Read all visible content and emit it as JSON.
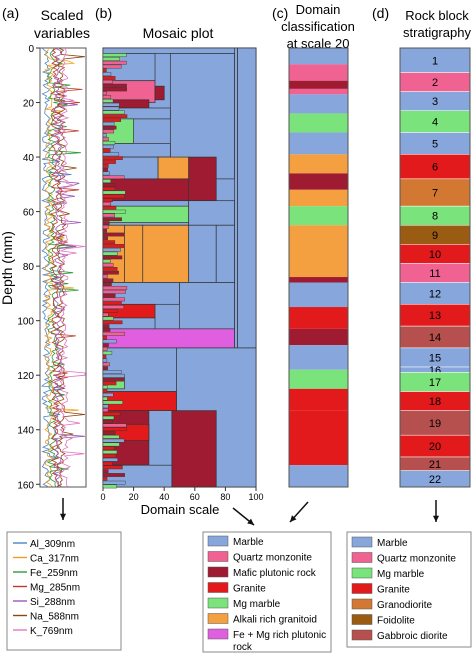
{
  "chart_data": {
    "type": "multi-panel",
    "depth_axis": {
      "label": "Depth (mm)",
      "range": [
        0,
        160
      ],
      "ticks": [
        0,
        20,
        40,
        60,
        80,
        100,
        120,
        140,
        160
      ]
    },
    "panels": {
      "a": {
        "letter": "(a)",
        "title_lines": [
          "Scaled",
          "variables"
        ],
        "type": "line",
        "legend": [
          "Al_309nm",
          "Ca_317nm",
          "Fe_259nm",
          "Mg_285nm",
          "Si_288nm",
          "Na_588nm",
          "K_769nm"
        ],
        "legend_colors": [
          "#4a86c8",
          "#f39c1e",
          "#2e9e3a",
          "#c0392b",
          "#9b59b6",
          "#8b4513",
          "#e377c2"
        ]
      },
      "b": {
        "letter": "(b)",
        "title": "Mosaic plot",
        "xlabel": "Domain scale",
        "xticks": [
          0,
          20,
          40,
          60,
          80,
          100
        ],
        "xrange": [
          0,
          100
        ],
        "type": "mosaic",
        "legend": [
          {
            "label": "Marble",
            "color": "#86a6dc"
          },
          {
            "label": "Quartz monzonite",
            "color": "#f06292"
          },
          {
            "label": "Mafic plutonic rock",
            "color": "#9e1b32"
          },
          {
            "label": "Granite",
            "color": "#e31a1c"
          },
          {
            "label": "Mg marble",
            "color": "#7be37b"
          },
          {
            "label": "Alkali rich granitoid",
            "color": "#f5a040"
          },
          {
            "label": "Fe + Mg rich plutonic rock",
            "color": "#e05ee0"
          }
        ],
        "legend_wrap_last": [
          "Fe + Mg rich plutonic",
          "rock"
        ],
        "blocks": [
          {
            "y0": 0,
            "y1": 2,
            "x0": 0,
            "x1": 100,
            "c": 0
          },
          {
            "y0": 2,
            "y1": 48,
            "x0": 44,
            "x1": 86,
            "c": 0
          },
          {
            "y0": 2,
            "y1": 12,
            "x0": 0,
            "x1": 34,
            "c": 0
          },
          {
            "y0": 12,
            "y1": 20,
            "x0": 0,
            "x1": 34,
            "c": 1
          },
          {
            "y0": 14,
            "y1": 19,
            "x0": 34,
            "x1": 40,
            "c": 2
          },
          {
            "y0": 19,
            "y1": 22,
            "x0": 0,
            "x1": 30,
            "c": 2
          },
          {
            "y0": 22,
            "y1": 26,
            "x0": 0,
            "x1": 44,
            "c": 0
          },
          {
            "y0": 26,
            "y1": 35,
            "x0": 0,
            "x1": 20,
            "c": 4
          },
          {
            "y0": 35,
            "y1": 40,
            "x0": 0,
            "x1": 44,
            "c": 0
          },
          {
            "y0": 40,
            "y1": 48,
            "x0": 0,
            "x1": 36,
            "c": 0
          },
          {
            "y0": 40,
            "y1": 48,
            "x0": 36,
            "x1": 56,
            "c": 5
          },
          {
            "y0": 40,
            "y1": 56,
            "x0": 56,
            "x1": 74,
            "c": 2
          },
          {
            "y0": 48,
            "y1": 56,
            "x0": 0,
            "x1": 56,
            "c": 2
          },
          {
            "y0": 56,
            "y1": 65,
            "x0": 0,
            "x1": 56,
            "c": 0
          },
          {
            "y0": 58,
            "y1": 64,
            "x0": 0,
            "x1": 56,
            "c": 4
          },
          {
            "y0": 56,
            "y1": 65,
            "x0": 56,
            "x1": 86,
            "c": 0
          },
          {
            "y0": 65,
            "y1": 86,
            "x0": 0,
            "x1": 14,
            "c": 5
          },
          {
            "y0": 65,
            "y1": 86,
            "x0": 14,
            "x1": 26,
            "c": 5
          },
          {
            "y0": 65,
            "y1": 86,
            "x0": 26,
            "x1": 56,
            "c": 5
          },
          {
            "y0": 65,
            "y1": 86,
            "x0": 56,
            "x1": 74,
            "c": 0
          },
          {
            "y0": 65,
            "y1": 86,
            "x0": 74,
            "x1": 86,
            "c": 0
          },
          {
            "y0": 86,
            "y1": 94,
            "x0": 0,
            "x1": 50,
            "c": 0
          },
          {
            "y0": 86,
            "y1": 103,
            "x0": 50,
            "x1": 86,
            "c": 0
          },
          {
            "y0": 94,
            "y1": 99,
            "x0": 0,
            "x1": 34,
            "c": 3
          },
          {
            "y0": 99,
            "y1": 103,
            "x0": 0,
            "x1": 34,
            "c": 0
          },
          {
            "y0": 103,
            "y1": 110,
            "x0": 0,
            "x1": 86,
            "c": 6
          },
          {
            "y0": 0,
            "y1": 110,
            "x0": 86,
            "x1": 88,
            "c": 0
          },
          {
            "y0": 0,
            "y1": 110,
            "x0": 88,
            "x1": 100,
            "c": 0
          },
          {
            "y0": 110,
            "y1": 126,
            "x0": 0,
            "x1": 48,
            "c": 0
          },
          {
            "y0": 110,
            "y1": 161,
            "x0": 48,
            "x1": 100,
            "c": 0
          },
          {
            "y0": 120,
            "y1": 125,
            "x0": 0,
            "x1": 14,
            "c": 4
          },
          {
            "y0": 126,
            "y1": 133,
            "x0": 0,
            "x1": 48,
            "c": 3
          },
          {
            "y0": 133,
            "y1": 153,
            "x0": 0,
            "x1": 30,
            "c": 2
          },
          {
            "y0": 133,
            "y1": 161,
            "x0": 45,
            "x1": 74,
            "c": 2
          },
          {
            "y0": 138,
            "y1": 144,
            "x0": 0,
            "x1": 30,
            "c": 3
          },
          {
            "y0": 153,
            "y1": 161,
            "x0": 0,
            "x1": 45,
            "c": 0
          }
        ]
      },
      "c": {
        "letter": "(c)",
        "title_lines": [
          "Domain",
          "classification",
          "at scale 20"
        ],
        "bands": [
          {
            "y0": 0,
            "y1": 6,
            "c": 0
          },
          {
            "y0": 6,
            "y1": 12,
            "c": 1
          },
          {
            "y0": 12,
            "y1": 15,
            "c": 2
          },
          {
            "y0": 15,
            "y1": 17,
            "c": 1
          },
          {
            "y0": 17,
            "y1": 24,
            "c": 0
          },
          {
            "y0": 24,
            "y1": 31,
            "c": 4
          },
          {
            "y0": 31,
            "y1": 39,
            "c": 0
          },
          {
            "y0": 39,
            "y1": 46,
            "c": 5
          },
          {
            "y0": 46,
            "y1": 52,
            "c": 2
          },
          {
            "y0": 52,
            "y1": 58,
            "c": 5
          },
          {
            "y0": 58,
            "y1": 65,
            "c": 4
          },
          {
            "y0": 65,
            "y1": 84,
            "c": 5
          },
          {
            "y0": 84,
            "y1": 86,
            "c": 2
          },
          {
            "y0": 86,
            "y1": 95,
            "c": 0
          },
          {
            "y0": 95,
            "y1": 103,
            "c": 3
          },
          {
            "y0": 103,
            "y1": 109,
            "c": 2
          },
          {
            "y0": 109,
            "y1": 118,
            "c": 0
          },
          {
            "y0": 118,
            "y1": 125,
            "c": 4
          },
          {
            "y0": 125,
            "y1": 133,
            "c": 3
          },
          {
            "y0": 133,
            "y1": 153,
            "c": 3
          },
          {
            "y0": 153,
            "y1": 161,
            "c": 0
          }
        ]
      },
      "d": {
        "letter": "(d)",
        "title_lines": [
          "Rock block",
          "stratigraphy"
        ],
        "legend": [
          {
            "label": "Marble",
            "color": "#86a6dc"
          },
          {
            "label": "Quartz monzonite",
            "color": "#f06292"
          },
          {
            "label": "Mg marble",
            "color": "#7be37b"
          },
          {
            "label": "Granite",
            "color": "#e31a1c"
          },
          {
            "label": "Granodiorite",
            "color": "#d27832"
          },
          {
            "label": "Foidolite",
            "color": "#9a5b12"
          },
          {
            "label": "Gabbroic diorite",
            "color": "#b5504f"
          }
        ],
        "blocks": [
          {
            "n": "1",
            "y0": 0,
            "y1": 9,
            "c": 0
          },
          {
            "n": "2",
            "y0": 9,
            "y1": 16,
            "c": 1
          },
          {
            "n": "3",
            "y0": 16,
            "y1": 23,
            "c": 0
          },
          {
            "n": "4",
            "y0": 23,
            "y1": 31,
            "c": 2
          },
          {
            "n": "5",
            "y0": 31,
            "y1": 39,
            "c": 0
          },
          {
            "n": "6",
            "y0": 39,
            "y1": 48,
            "c": 3
          },
          {
            "n": "7",
            "y0": 48,
            "y1": 58,
            "c": 4
          },
          {
            "n": "8",
            "y0": 58,
            "y1": 65,
            "c": 2
          },
          {
            "n": "9",
            "y0": 65,
            "y1": 72,
            "c": 5
          },
          {
            "n": "10",
            "y0": 72,
            "y1": 79,
            "c": 3
          },
          {
            "n": "11",
            "y0": 79,
            "y1": 86,
            "c": 1
          },
          {
            "n": "12",
            "y0": 86,
            "y1": 94,
            "c": 0
          },
          {
            "n": "13",
            "y0": 94,
            "y1": 102,
            "c": 3
          },
          {
            "n": "14",
            "y0": 102,
            "y1": 110,
            "c": 6
          },
          {
            "n": "15",
            "y0": 110,
            "y1": 117,
            "c": 0
          },
          {
            "n": "16",
            "y0": 117,
            "y1": 119,
            "c": 0
          },
          {
            "n": "17",
            "y0": 119,
            "y1": 126,
            "c": 2
          },
          {
            "n": "18",
            "y0": 126,
            "y1": 133,
            "c": 3
          },
          {
            "n": "19",
            "y0": 133,
            "y1": 142,
            "c": 6
          },
          {
            "n": "20",
            "y0": 142,
            "y1": 150,
            "c": 3
          },
          {
            "n": "21",
            "y0": 150,
            "y1": 155,
            "c": 6
          },
          {
            "n": "22",
            "y0": 155,
            "y1": 161,
            "c": 0
          }
        ]
      }
    }
  }
}
